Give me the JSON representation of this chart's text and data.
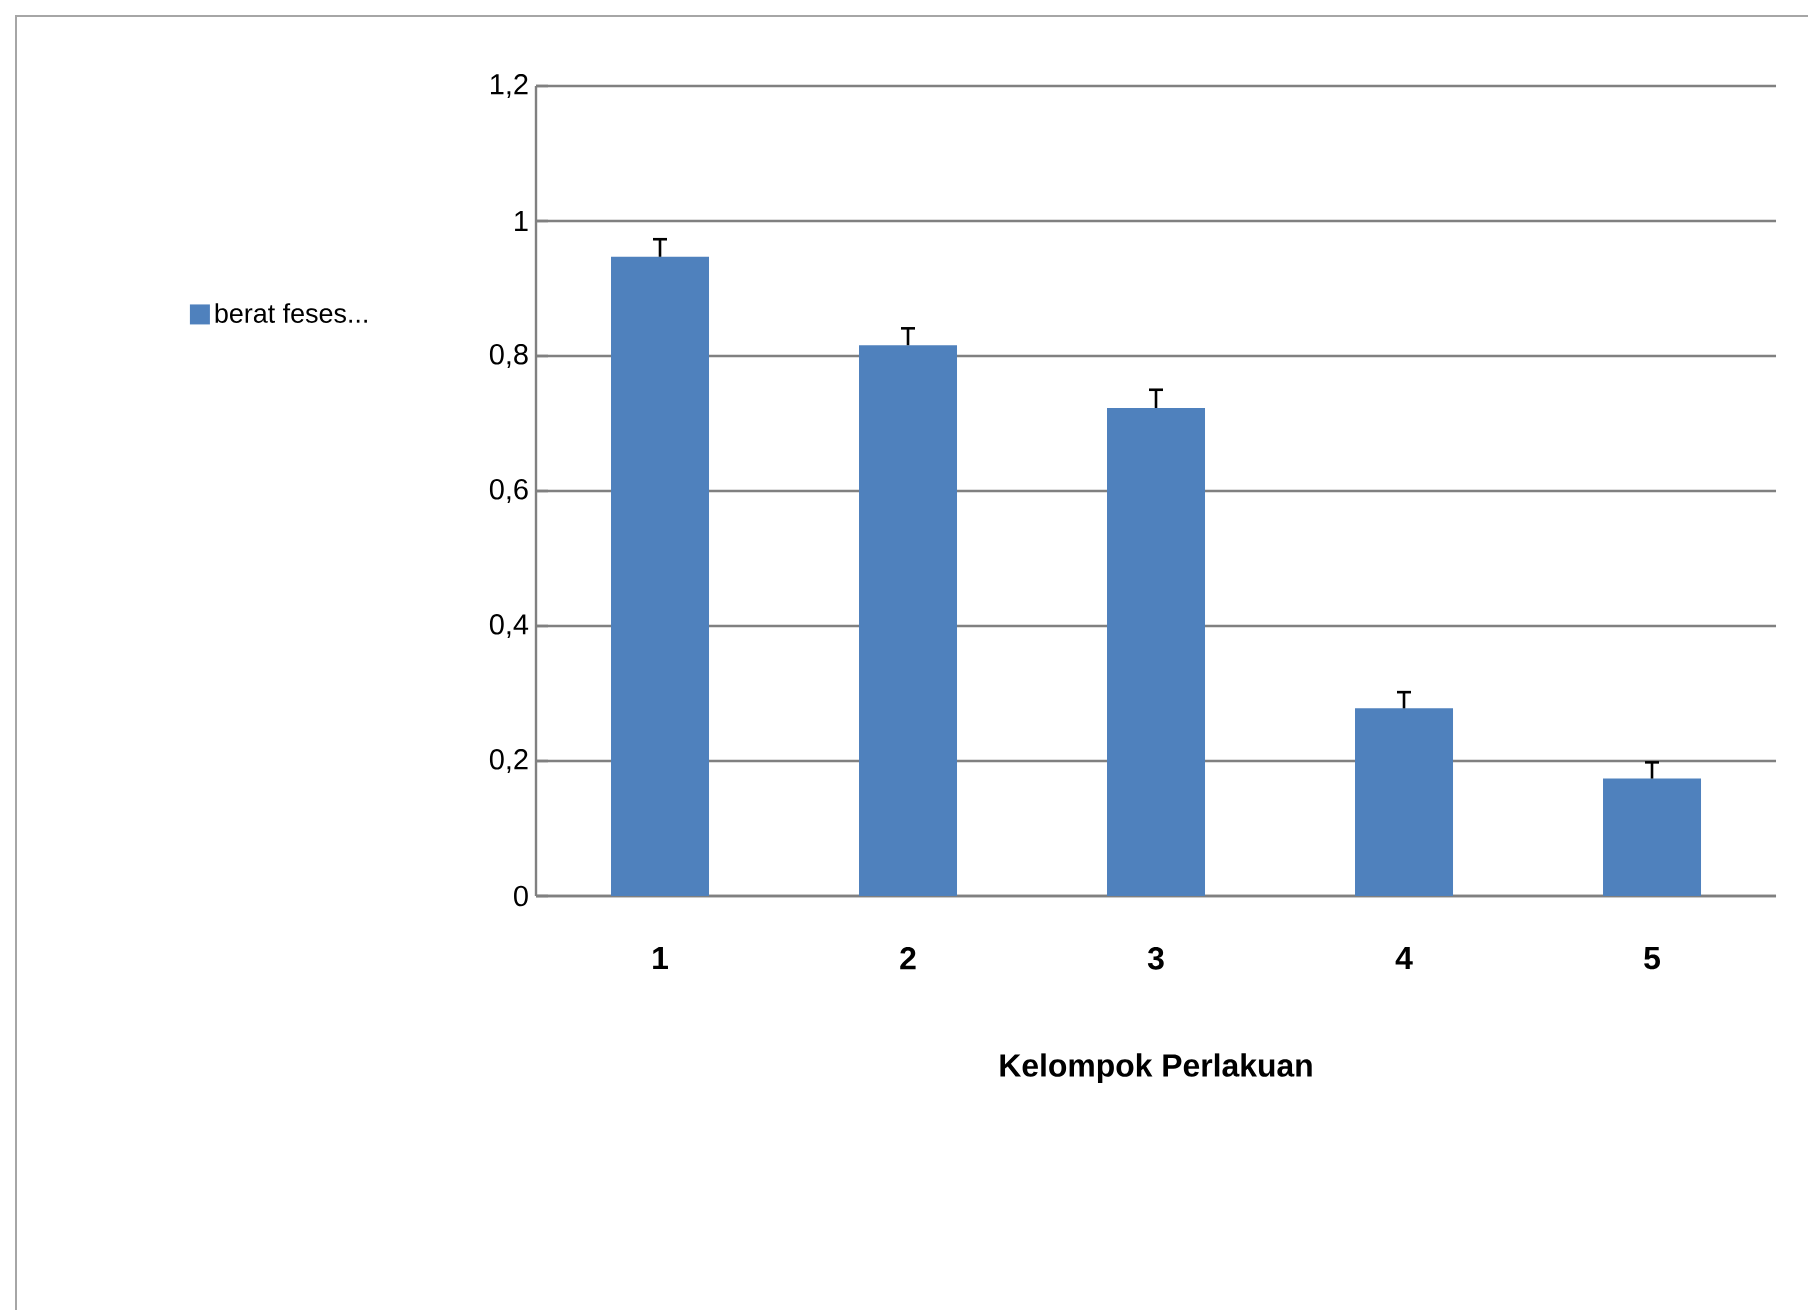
{
  "chart_data": {
    "type": "bar",
    "xlabel": "Kelompok Perlakuan",
    "categories": [
      "1",
      "2",
      "3",
      "4",
      "5"
    ],
    "series": [
      {
        "name": "berat feses...",
        "color": "#4f81bd",
        "values": [
          0.947,
          0.816,
          0.723,
          0.278,
          0.174
        ],
        "errors": [
          [
            0.947,
            0.973
          ],
          [
            0.816,
            0.841
          ],
          [
            0.723,
            0.75
          ],
          [
            0.278,
            0.302
          ],
          [
            0.174,
            0.198
          ]
        ]
      }
    ],
    "ylim": [
      0,
      1.2
    ],
    "yticks": [
      {
        "value": 0,
        "label": "0"
      },
      {
        "value": 0.2,
        "label": "0,2"
      },
      {
        "value": 0.4,
        "label": "0,4"
      },
      {
        "value": 0.6,
        "label": "0,6"
      },
      {
        "value": 0.8,
        "label": "0,8"
      },
      {
        "value": 1,
        "label": "1"
      },
      {
        "value": 1.2,
        "label": "1,2"
      }
    ],
    "grid": "y",
    "legend": "left"
  }
}
